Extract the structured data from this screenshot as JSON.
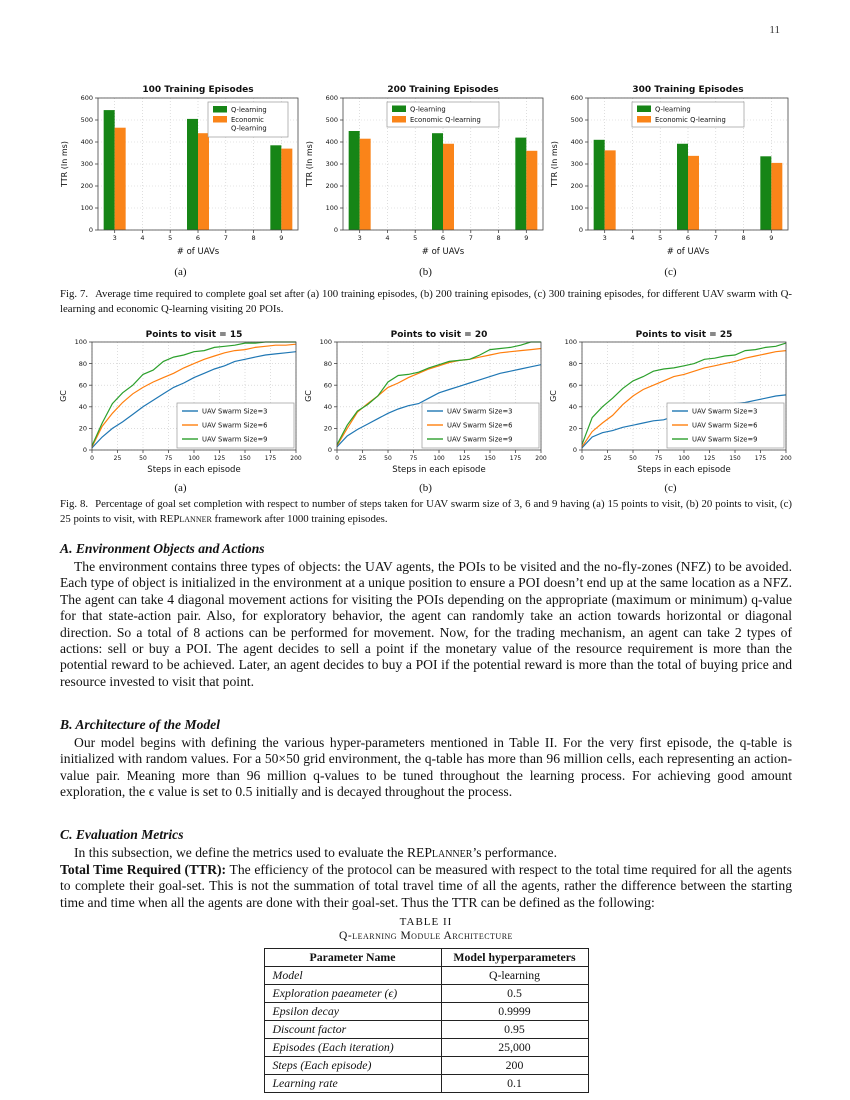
{
  "page": {
    "number": "11"
  },
  "figure7": {
    "caption_label": "Fig. 7.",
    "caption_text": "Average time required to complete goal set after (a) 100 training episodes, (b) 200 training episodes, (c) 300 training episodes, for different UAV swarm with Q-learning and economic Q-learning visiting 20 POIs.",
    "sublabels": [
      "(a)",
      "(b)",
      "(c)"
    ]
  },
  "figure8": {
    "caption_label": "Fig. 8.",
    "caption_pre": "Percentage of goal set completion with respect to number of steps taken for UAV swarm size of 3, 6 and 9 having (a) 15 points to visit, (b) 20 points to visit, (c) 25 points to visit, with ",
    "caption_smallcaps": "REPlanner",
    "caption_post": " framework after 1000 training episodes.",
    "sublabels": [
      "(a)",
      "(b)",
      "(c)"
    ]
  },
  "sections": {
    "a": {
      "heading": "A. Environment Objects and Actions",
      "body": "The environment contains three types of objects: the UAV agents, the POIs to be visited and the no-fly-zones (NFZ) to be avoided. Each type of object is initialized in the environment at a unique position to ensure a POI doesn’t end up at the same location as a NFZ. The agent can take 4 diagonal movement actions for visiting the POIs depending on the appropriate (maximum or minimum) q-value for that state-action pair. Also, for exploratory behavior, the agent can randomly take an action towards horizontal or diagonal direction. So a total of 8 actions can be performed for movement. Now, for the trading mechanism, an agent can take 2 types of actions: sell or buy a POI. The agent decides to sell a point if the monetary value of the resource requirement is more than the potential reward to be achieved. Later, an agent decides to buy a POI if the potential reward is more than the total of buying price and resource invested to visit that point."
    },
    "b": {
      "heading": "B. Architecture of the Model",
      "body": "Our model begins with defining the various hyper-parameters mentioned in Table II. For the very first episode, the q-table is initialized with random values. For a 50×50 grid environment, the q-table has more than 96 million cells, each representing an action-value pair. Meaning more than 96 million q-values to be tuned throughout the learning process. For achieving good amount exploration, the ϵ value is set to 0.5 initially and is decayed throughout the process."
    },
    "c": {
      "heading": "C. Evaluation Metrics",
      "intro_pre": "In this subsection, we define the metrics used to evaluate the ",
      "intro_smallcaps": "REPlanner",
      "intro_post": "’s performance.",
      "ttr_lead": "Total Time Required (TTR):",
      "ttr_body": " The efficiency of the protocol can be measured with respect to the total time required for all the agents to complete their goal-set. This is not the summation of total travel time of all the agents, rather the difference between the starting time and time when all the agents are done with their goal-set. Thus the TTR can be defined as the following:"
    }
  },
  "table2": {
    "title": "TABLE II",
    "subtitle": "Q-learning Module Architecture",
    "headers": [
      "Parameter Name",
      "Model hyperparameters"
    ],
    "rows": [
      [
        "Model",
        "Q-learning"
      ],
      [
        "Exploration paeameter (ϵ)",
        "0.5"
      ],
      [
        "Epsilon decay",
        "0.9999"
      ],
      [
        "Discount factor",
        "0.95"
      ],
      [
        "Episodes (Each iteration)",
        "25,000"
      ],
      [
        "Steps (Each episode)",
        "200"
      ],
      [
        "Learning rate",
        "0.1"
      ]
    ]
  },
  "chart_data": [
    {
      "type": "bar",
      "title": "100 Training Episodes",
      "xlabel": "# of UAVs",
      "ylabel": "TTR (In ms)",
      "categories": [
        3,
        6,
        9
      ],
      "xticks": [
        3,
        4,
        5,
        6,
        7,
        8,
        9
      ],
      "xlim": [
        2.4,
        9.6
      ],
      "ylim": [
        0,
        600
      ],
      "yticks": [
        0,
        100,
        200,
        300,
        400,
        500,
        600
      ],
      "grid": true,
      "legend_pos": "upper-right-wrapped",
      "series": [
        {
          "name": "Q-learning",
          "color": "#168516",
          "values": [
            545,
            505,
            385
          ]
        },
        {
          "name": "Economic Q-learning",
          "color": "#fa8419",
          "values": [
            465,
            440,
            370
          ]
        }
      ]
    },
    {
      "type": "bar",
      "title": "200 Training Episodes",
      "xlabel": "# of UAVs",
      "ylabel": "TTR (In ms)",
      "categories": [
        3,
        6,
        9
      ],
      "xticks": [
        3,
        4,
        5,
        6,
        7,
        8,
        9
      ],
      "xlim": [
        2.4,
        9.6
      ],
      "ylim": [
        0,
        600
      ],
      "yticks": [
        0,
        100,
        200,
        300,
        400,
        500,
        600
      ],
      "grid": true,
      "legend_pos": "upper-center",
      "series": [
        {
          "name": "Q-learning",
          "color": "#168516",
          "values": [
            450,
            440,
            420
          ]
        },
        {
          "name": "Economic Q-learning",
          "color": "#fa8419",
          "values": [
            415,
            392,
            360
          ]
        }
      ]
    },
    {
      "type": "bar",
      "title": "300 Training Episodes",
      "xlabel": "# of UAVs",
      "ylabel": "TTR (In ms)",
      "categories": [
        3,
        6,
        9
      ],
      "xticks": [
        3,
        4,
        5,
        6,
        7,
        8,
        9
      ],
      "xlim": [
        2.4,
        9.6
      ],
      "ylim": [
        0,
        600
      ],
      "yticks": [
        0,
        100,
        200,
        300,
        400,
        500,
        600
      ],
      "grid": true,
      "legend_pos": "upper-center",
      "series": [
        {
          "name": "Q-learning",
          "color": "#168516",
          "values": [
            410,
            392,
            335
          ]
        },
        {
          "name": "Economic Q-learning",
          "color": "#fa8419",
          "values": [
            362,
            337,
            305
          ]
        }
      ]
    },
    {
      "type": "line",
      "title": "Points to visit = 15",
      "xlabel": "Steps in each episode",
      "ylabel": "GC",
      "xlim": [
        0,
        200
      ],
      "ylim": [
        0,
        100
      ],
      "xticks": [
        0,
        25,
        50,
        75,
        100,
        125,
        150,
        175,
        200
      ],
      "yticks": [
        0,
        20,
        40,
        60,
        80,
        100
      ],
      "grid": true,
      "legend_pos": "lower-right",
      "x": [
        0,
        10,
        20,
        30,
        40,
        50,
        60,
        70,
        80,
        90,
        100,
        110,
        120,
        130,
        140,
        150,
        160,
        170,
        180,
        190,
        200
      ],
      "series": [
        {
          "name": "UAV Swarm Size=3",
          "color": "#1f77b4",
          "values": [
            2,
            12,
            20,
            26,
            33,
            40,
            46,
            52,
            58,
            62,
            67,
            71,
            75,
            78,
            82,
            84,
            86,
            88,
            89,
            90,
            91
          ]
        },
        {
          "name": "UAV Swarm Size=6",
          "color": "#ff7f0e",
          "values": [
            3,
            22,
            34,
            44,
            52,
            58,
            63,
            67,
            71,
            76,
            80,
            84,
            87,
            90,
            92,
            93,
            95,
            96,
            97,
            97,
            98
          ]
        },
        {
          "name": "UAV Swarm Size=9",
          "color": "#2ca02c",
          "values": [
            4,
            25,
            43,
            53,
            60,
            70,
            74,
            82,
            86,
            88,
            91,
            92,
            95,
            96,
            97,
            99,
            99,
            100,
            100,
            100,
            100
          ]
        }
      ]
    },
    {
      "type": "line",
      "title": "Points to visit = 20",
      "xlabel": "Steps in each episode",
      "ylabel": "GC",
      "xlim": [
        0,
        200
      ],
      "ylim": [
        0,
        100
      ],
      "xticks": [
        0,
        25,
        50,
        75,
        100,
        125,
        150,
        175,
        200
      ],
      "yticks": [
        0,
        20,
        40,
        60,
        80,
        100
      ],
      "grid": true,
      "legend_pos": "lower-right",
      "x": [
        0,
        10,
        20,
        30,
        40,
        50,
        60,
        70,
        80,
        90,
        100,
        110,
        120,
        130,
        140,
        150,
        160,
        170,
        180,
        190,
        200
      ],
      "series": [
        {
          "name": "UAV Swarm Size=3",
          "color": "#1f77b4",
          "values": [
            3,
            13,
            19,
            24,
            29,
            34,
            38,
            41,
            43,
            48,
            53,
            56,
            59,
            62,
            65,
            68,
            71,
            73,
            75,
            77,
            79
          ]
        },
        {
          "name": "UAV Swarm Size=6",
          "color": "#ff7f0e",
          "values": [
            4,
            20,
            35,
            43,
            50,
            58,
            62,
            67,
            71,
            75,
            78,
            81,
            83,
            84,
            86,
            88,
            90,
            91,
            92,
            93,
            94
          ]
        },
        {
          "name": "UAV Swarm Size=9",
          "color": "#2ca02c",
          "values": [
            5,
            23,
            36,
            42,
            50,
            63,
            69,
            70,
            72,
            76,
            79,
            82,
            83,
            84,
            88,
            93,
            94,
            95,
            97,
            100,
            100
          ]
        }
      ]
    },
    {
      "type": "line",
      "title": "Points to visit = 25",
      "xlabel": "Steps in each episode",
      "ylabel": "GC",
      "xlim": [
        0,
        200
      ],
      "ylim": [
        0,
        100
      ],
      "xticks": [
        0,
        25,
        50,
        75,
        100,
        125,
        150,
        175,
        200
      ],
      "yticks": [
        0,
        20,
        40,
        60,
        80,
        100
      ],
      "grid": true,
      "legend_pos": "lower-right",
      "x": [
        0,
        10,
        20,
        30,
        40,
        50,
        60,
        70,
        80,
        90,
        100,
        110,
        120,
        130,
        140,
        150,
        160,
        170,
        180,
        190,
        200
      ],
      "series": [
        {
          "name": "UAV Swarm Size=3",
          "color": "#1f77b4",
          "values": [
            2,
            12,
            16,
            18,
            21,
            23,
            25,
            27,
            28,
            31,
            33,
            34,
            36,
            37,
            40,
            43,
            44,
            46,
            48,
            50,
            51
          ]
        },
        {
          "name": "UAV Swarm Size=6",
          "color": "#ff7f0e",
          "values": [
            3,
            17,
            25,
            32,
            42,
            50,
            56,
            60,
            64,
            68,
            70,
            73,
            76,
            78,
            80,
            82,
            85,
            87,
            89,
            91,
            92
          ]
        },
        {
          "name": "UAV Swarm Size=9",
          "color": "#2ca02c",
          "values": [
            5,
            30,
            40,
            48,
            57,
            64,
            68,
            73,
            75,
            76,
            78,
            80,
            84,
            85,
            87,
            88,
            92,
            93,
            95,
            96,
            99
          ]
        }
      ]
    }
  ],
  "colors": {
    "bar_green": "#168516",
    "bar_orange": "#fa8419",
    "line_blue": "#1f77b4",
    "line_orange": "#ff7f0e",
    "line_green": "#2ca02c"
  }
}
